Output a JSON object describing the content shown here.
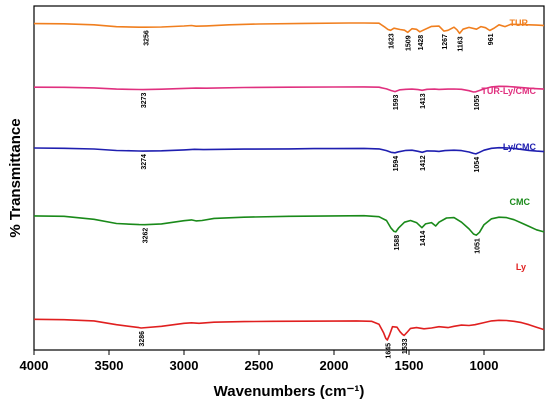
{
  "chart_data": {
    "type": "line",
    "title": "",
    "xlabel": "Wavenumbers (cm⁻¹)",
    "ylabel": "% Transmittance",
    "xlim": [
      4000,
      600
    ],
    "x_reversed": true,
    "x_ticks": [
      "4000",
      "3500",
      "3000",
      "2500",
      "2000",
      "1500",
      "1000"
    ],
    "y_tick_labels": false,
    "grid": false,
    "legend": "labels next to each curve (right side)",
    "series": [
      {
        "name": "TUR",
        "color": "#f07f1f",
        "points": [
          [
            4000,
            1.2
          ],
          [
            3800,
            1.5
          ],
          [
            3600,
            3.4
          ],
          [
            3450,
            7.2
          ],
          [
            3300,
            8.0
          ],
          [
            3256,
            8.1
          ],
          [
            3150,
            7.6
          ],
          [
            3000,
            5.7
          ],
          [
            2950,
            4.9
          ],
          [
            2920,
            6.1
          ],
          [
            2850,
            5.5
          ],
          [
            2700,
            3.5
          ],
          [
            2500,
            2.0
          ],
          [
            2200,
            0.8
          ],
          [
            1900,
            0.0
          ],
          [
            1800,
            0.0
          ],
          [
            1700,
            0.4
          ],
          [
            1660,
            8.0
          ],
          [
            1640,
            12.5
          ],
          [
            1623,
            14.0
          ],
          [
            1600,
            10.0
          ],
          [
            1560,
            12.5
          ],
          [
            1530,
            13.8
          ],
          [
            1509,
            18.0
          ],
          [
            1480,
            11.0
          ],
          [
            1450,
            12.2
          ],
          [
            1428,
            17.0
          ],
          [
            1400,
            13.0
          ],
          [
            1350,
            6.5
          ],
          [
            1300,
            6.0
          ],
          [
            1267,
            15.5
          ],
          [
            1240,
            14.0
          ],
          [
            1200,
            8.0
          ],
          [
            1180,
            13.0
          ],
          [
            1163,
            20.0
          ],
          [
            1140,
            12.0
          ],
          [
            1100,
            8.5
          ],
          [
            1050,
            12.0
          ],
          [
            1020,
            7.0
          ],
          [
            990,
            9.0
          ],
          [
            961,
            14.5
          ],
          [
            930,
            9.5
          ],
          [
            900,
            3.5
          ],
          [
            860,
            7.0
          ],
          [
            820,
            2.5
          ],
          [
            760,
            3.0
          ],
          [
            700,
            3.5
          ],
          [
            650,
            4.0
          ],
          [
            620,
            4.5
          ],
          [
            600,
            5.0
          ]
        ]
      },
      {
        "name": "TUR-Ly/CMC",
        "color": "#e0307f",
        "points": [
          [
            4000,
            18.2
          ],
          [
            3800,
            18.5
          ],
          [
            3600,
            19.8
          ],
          [
            3450,
            22.5
          ],
          [
            3300,
            23.3
          ],
          [
            3273,
            23.5
          ],
          [
            3150,
            22.6
          ],
          [
            3000,
            20.8
          ],
          [
            2920,
            20.2
          ],
          [
            2850,
            20.5
          ],
          [
            2600,
            19.0
          ],
          [
            2300,
            18.2
          ],
          [
            2000,
            17.8
          ],
          [
            1800,
            17.6
          ],
          [
            1700,
            18.2
          ],
          [
            1650,
            22.0
          ],
          [
            1620,
            25.5
          ],
          [
            1593,
            28.0
          ],
          [
            1560,
            24.0
          ],
          [
            1520,
            23.0
          ],
          [
            1480,
            22.5
          ],
          [
            1440,
            23.5
          ],
          [
            1413,
            25.0
          ],
          [
            1380,
            23.0
          ],
          [
            1330,
            22.5
          ],
          [
            1300,
            23.2
          ],
          [
            1240,
            22.5
          ],
          [
            1200,
            22.2
          ],
          [
            1150,
            23.0
          ],
          [
            1100,
            26.0
          ],
          [
            1070,
            28.8
          ],
          [
            1055,
            28.5
          ],
          [
            1030,
            25.5
          ],
          [
            1000,
            22.0
          ],
          [
            950,
            17.5
          ],
          [
            900,
            16.2
          ],
          [
            850,
            16.5
          ],
          [
            800,
            17.5
          ],
          [
            750,
            19.0
          ],
          [
            700,
            20.5
          ],
          [
            650,
            21.5
          ],
          [
            600,
            22.5
          ]
        ]
      },
      {
        "name": "Ly/CMC",
        "color": "#1f1fb0",
        "points": [
          [
            4000,
            32.0
          ],
          [
            3800,
            32.5
          ],
          [
            3600,
            34.0
          ],
          [
            3450,
            37.2
          ],
          [
            3300,
            38.4
          ],
          [
            3274,
            38.6
          ],
          [
            3150,
            37.8
          ],
          [
            3000,
            36.0
          ],
          [
            2930,
            34.6
          ],
          [
            2870,
            35.3
          ],
          [
            2600,
            34.3
          ],
          [
            2300,
            33.8
          ],
          [
            2135,
            33.2
          ],
          [
            2000,
            33.2
          ],
          [
            1800,
            32.8
          ],
          [
            1700,
            33.8
          ],
          [
            1650,
            37.5
          ],
          [
            1620,
            41.0
          ],
          [
            1594,
            42.2
          ],
          [
            1570,
            40.0
          ],
          [
            1520,
            37.0
          ],
          [
            1480,
            36.5
          ],
          [
            1440,
            39.0
          ],
          [
            1412,
            41.0
          ],
          [
            1380,
            38.0
          ],
          [
            1330,
            38.5
          ],
          [
            1300,
            39.2
          ],
          [
            1260,
            37.5
          ],
          [
            1200,
            36.5
          ],
          [
            1150,
            37.5
          ],
          [
            1100,
            40.5
          ],
          [
            1070,
            43.5
          ],
          [
            1054,
            44.5
          ],
          [
            1030,
            41.0
          ],
          [
            1000,
            36.5
          ],
          [
            950,
            32.5
          ],
          [
            900,
            31.2
          ],
          [
            850,
            31.6
          ],
          [
            800,
            32.8
          ],
          [
            750,
            35.0
          ],
          [
            700,
            37.0
          ],
          [
            650,
            38.5
          ],
          [
            600,
            39.5
          ]
        ]
      },
      {
        "name": "CMC",
        "color": "#1a8a1a",
        "points": [
          [
            4000,
            47.5
          ],
          [
            3800,
            48.0
          ],
          [
            3600,
            51.5
          ],
          [
            3450,
            56.5
          ],
          [
            3300,
            57.8
          ],
          [
            3262,
            58.0
          ],
          [
            3150,
            57.0
          ],
          [
            3000,
            53.2
          ],
          [
            2950,
            52.3
          ],
          [
            2920,
            53.5
          ],
          [
            2880,
            53.0
          ],
          [
            2800,
            50.5
          ],
          [
            2600,
            49.0
          ],
          [
            2300,
            48.0
          ],
          [
            2000,
            47.5
          ],
          [
            1800,
            47.3
          ],
          [
            1700,
            48.5
          ],
          [
            1650,
            53.0
          ],
          [
            1620,
            62.0
          ],
          [
            1600,
            66.0
          ],
          [
            1588,
            66.5
          ],
          [
            1570,
            62.0
          ],
          [
            1530,
            55.0
          ],
          [
            1490,
            53.0
          ],
          [
            1450,
            55.5
          ],
          [
            1414,
            61.5
          ],
          [
            1390,
            57.0
          ],
          [
            1350,
            55.5
          ],
          [
            1322,
            59.5
          ],
          [
            1300,
            55.0
          ],
          [
            1250,
            50.0
          ],
          [
            1200,
            49.5
          ],
          [
            1150,
            55.0
          ],
          [
            1100,
            63.0
          ],
          [
            1070,
            69.0
          ],
          [
            1051,
            70.5
          ],
          [
            1030,
            67.0
          ],
          [
            1000,
            58.0
          ],
          [
            950,
            51.0
          ],
          [
            900,
            49.0
          ],
          [
            850,
            49.5
          ],
          [
            800,
            52.0
          ],
          [
            750,
            56.0
          ],
          [
            700,
            60.0
          ],
          [
            650,
            64.0
          ],
          [
            600,
            66.5
          ]
        ]
      },
      {
        "name": "Ly",
        "color": "#e02020",
        "points": [
          [
            4000,
            69.0
          ],
          [
            3800,
            69.5
          ],
          [
            3600,
            71.0
          ],
          [
            3450,
            75.5
          ],
          [
            3300,
            79.0
          ],
          [
            3286,
            79.5
          ],
          [
            3150,
            77.5
          ],
          [
            3000,
            73.8
          ],
          [
            2950,
            73.3
          ],
          [
            2900,
            73.8
          ],
          [
            2800,
            72.5
          ],
          [
            2600,
            71.8
          ],
          [
            2400,
            71.5
          ],
          [
            2200,
            71.3
          ],
          [
            2000,
            71.2
          ],
          [
            1850,
            71.0
          ],
          [
            1750,
            71.5
          ],
          [
            1700,
            75.0
          ],
          [
            1670,
            85.0
          ],
          [
            1655,
            92.0
          ],
          [
            1645,
            94.0
          ],
          [
            1630,
            88.0
          ],
          [
            1610,
            78.0
          ],
          [
            1580,
            78.5
          ],
          [
            1560,
            84.0
          ],
          [
            1545,
            87.0
          ],
          [
            1533,
            88.5
          ],
          [
            1515,
            85.0
          ],
          [
            1490,
            80.0
          ],
          [
            1450,
            79.0
          ],
          [
            1400,
            80.5
          ],
          [
            1350,
            79.5
          ],
          [
            1300,
            78.0
          ],
          [
            1240,
            79.0
          ],
          [
            1200,
            77.5
          ],
          [
            1150,
            76.0
          ],
          [
            1100,
            76.5
          ],
          [
            1060,
            75.5
          ],
          [
            1000,
            73.0
          ],
          [
            950,
            71.0
          ],
          [
            900,
            70.3
          ],
          [
            850,
            70.5
          ],
          [
            800,
            71.5
          ],
          [
            750,
            73.0
          ],
          [
            700,
            75.5
          ],
          [
            650,
            78.5
          ],
          [
            600,
            81.5
          ]
        ]
      }
    ],
    "series_labels": [
      {
        "text": "TUR",
        "series": 0
      },
      {
        "text": "TUR-Ly/CMC",
        "series": 1
      },
      {
        "text": "Ly/CMC",
        "series": 2
      },
      {
        "text": "CMC",
        "series": 3
      },
      {
        "text": "Ly",
        "series": 4
      }
    ],
    "peak_annotations": [
      {
        "text": "3256",
        "x": 3256,
        "series": 0
      },
      {
        "text": "1623",
        "x": 1623,
        "series": 0
      },
      {
        "text": "1509",
        "x": 1509,
        "series": 0
      },
      {
        "text": "1428",
        "x": 1428,
        "series": 0
      },
      {
        "text": "1267",
        "x": 1267,
        "series": 0
      },
      {
        "text": "1163",
        "x": 1163,
        "series": 0
      },
      {
        "text": "961",
        "x": 961,
        "series": 0
      },
      {
        "text": "3273",
        "x": 3273,
        "series": 1
      },
      {
        "text": "1593",
        "x": 1593,
        "series": 1
      },
      {
        "text": "1413",
        "x": 1413,
        "series": 1
      },
      {
        "text": "1055",
        "x": 1055,
        "series": 1
      },
      {
        "text": "3274",
        "x": 3274,
        "series": 2
      },
      {
        "text": "1594",
        "x": 1594,
        "series": 2
      },
      {
        "text": "1412",
        "x": 1412,
        "series": 2
      },
      {
        "text": "1054",
        "x": 1054,
        "series": 2
      },
      {
        "text": "3262",
        "x": 3262,
        "series": 3
      },
      {
        "text": "1588",
        "x": 1588,
        "series": 3
      },
      {
        "text": "1414",
        "x": 1414,
        "series": 3
      },
      {
        "text": "1051",
        "x": 1051,
        "series": 3
      },
      {
        "text": "3286",
        "x": 3286,
        "series": 4
      },
      {
        "text": "1645",
        "x": 1645,
        "series": 4
      },
      {
        "text": "1533",
        "x": 1533,
        "series": 4
      }
    ]
  }
}
